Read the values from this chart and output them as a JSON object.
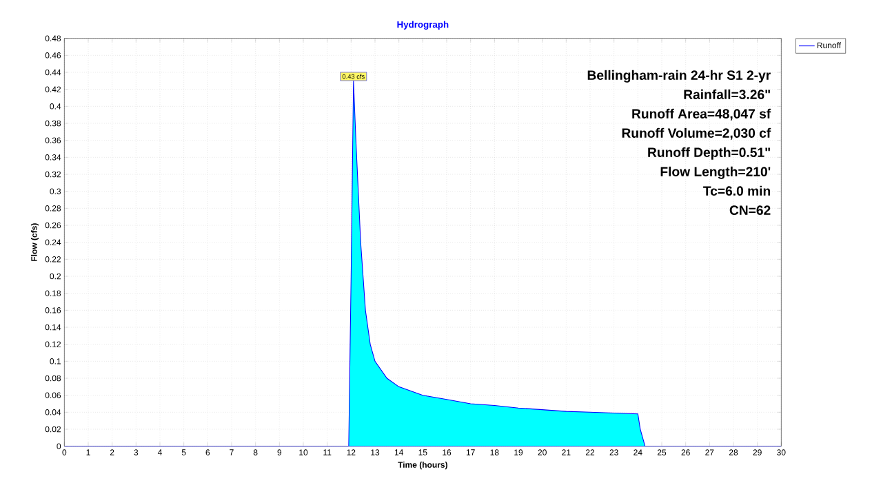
{
  "chart_data": {
    "type": "area",
    "title": "Hydrograph",
    "xlabel": "Time  (hours)",
    "ylabel": "Flow  (cfs)",
    "x": [
      0,
      11.9,
      12.0,
      12.1,
      12.2,
      12.3,
      12.4,
      12.5,
      12.6,
      12.8,
      13.0,
      13.5,
      14,
      15,
      16,
      17,
      18,
      19,
      20,
      21,
      22,
      23,
      24,
      24.1,
      24.3,
      30
    ],
    "series": [
      {
        "name": "Runoff",
        "color": "#00ffff",
        "values": [
          0,
          0,
          0.2,
          0.43,
          0.36,
          0.3,
          0.24,
          0.2,
          0.16,
          0.12,
          0.1,
          0.08,
          0.07,
          0.06,
          0.055,
          0.05,
          0.048,
          0.045,
          0.043,
          0.041,
          0.04,
          0.039,
          0.038,
          0.02,
          0,
          0
        ]
      }
    ],
    "xlim": [
      0,
      30
    ],
    "ylim": [
      0,
      0.48
    ],
    "xticks": [
      0,
      1,
      2,
      3,
      4,
      5,
      6,
      7,
      8,
      9,
      10,
      11,
      12,
      13,
      14,
      15,
      16,
      17,
      18,
      19,
      20,
      21,
      22,
      23,
      24,
      25,
      26,
      27,
      28,
      29,
      30
    ],
    "yticks": [
      0,
      0.02,
      0.04,
      0.06,
      0.08,
      0.1,
      0.12,
      0.14,
      0.16,
      0.18,
      0.2,
      0.22,
      0.24,
      0.26,
      0.28,
      0.3,
      0.32,
      0.34,
      0.36,
      0.38,
      0.4,
      0.42,
      0.44,
      0.46,
      0.48
    ],
    "grid": true,
    "legend": "top right",
    "annotations": [
      {
        "text": "0.43 cfs",
        "x": 12.1,
        "y": 0.43
      },
      "Bellingham-rain 24-hr S1 2-yr",
      "Rainfall=3.26\"",
      "Runoff Area=48,047 sf",
      "Runoff Volume=2,030 cf",
      "Runoff Depth=0.51\"",
      "Flow Length=210'",
      "Tc=6.0 min",
      "CN=62"
    ]
  }
}
